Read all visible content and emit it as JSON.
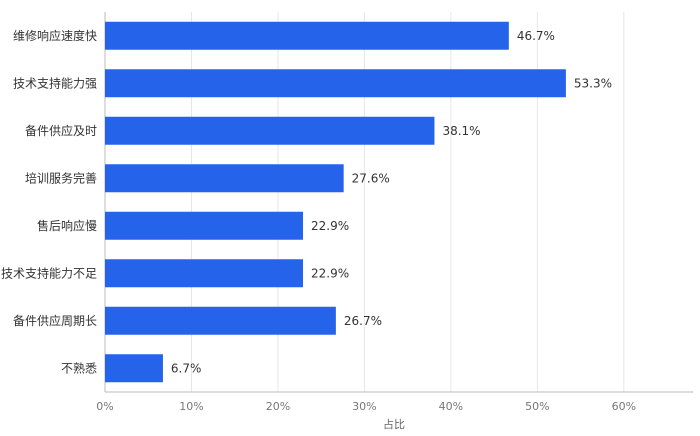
{
  "chart_data": {
    "type": "bar",
    "orientation": "horizontal",
    "categories": [
      "维修响应速度快",
      "技术支持能力强",
      "备件供应及时",
      "培训服务完善",
      "售后响应慢",
      "技术支持能力不足",
      "备件供应周期长",
      "不熟悉"
    ],
    "values": [
      46.7,
      53.3,
      38.1,
      27.6,
      22.9,
      22.9,
      26.7,
      6.7
    ],
    "value_labels": [
      "46.7%",
      "53.3%",
      "38.1%",
      "27.6%",
      "22.9%",
      "22.9%",
      "26.7%",
      "6.7%"
    ],
    "x_ticks": [
      "0%",
      "10%",
      "20%",
      "30%",
      "40%",
      "50%",
      "60%"
    ],
    "xlabel": "占比",
    "xlim": [
      0,
      68
    ],
    "grid": true,
    "bar_color": "#2563eb"
  }
}
